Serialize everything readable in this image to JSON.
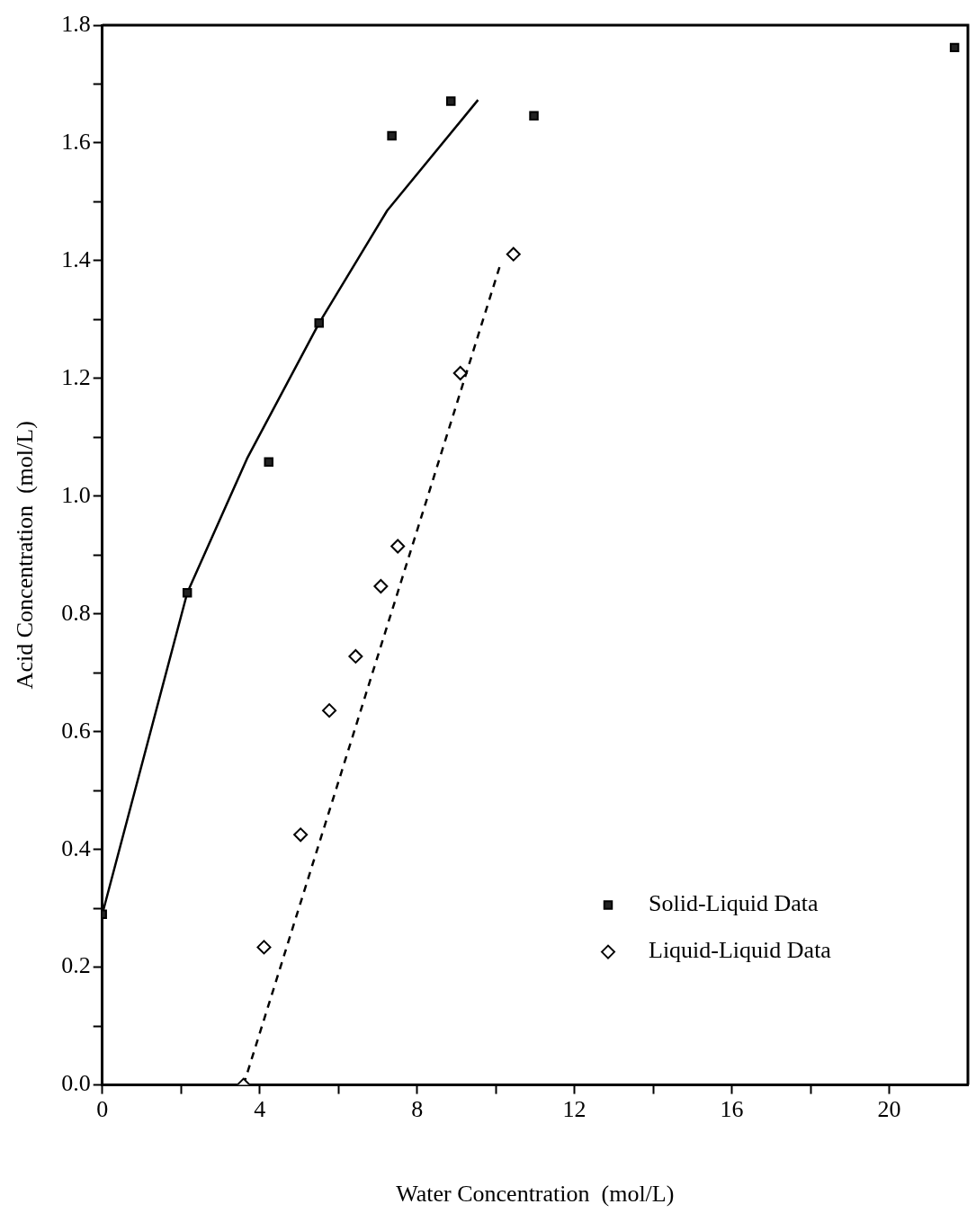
{
  "chart_data": {
    "type": "scatter",
    "xlabel": "Water Concentration  (mol/L)",
    "ylabel": "Acid Concentration  (mol/L)",
    "xlim": [
      0,
      22
    ],
    "ylim": [
      0,
      1.8
    ],
    "xticks": [
      0,
      {
        "value": 2,
        "label": null
      },
      4,
      {
        "value": 6,
        "label": null
      },
      8,
      {
        "value": 10,
        "label": null
      },
      12,
      {
        "value": 14,
        "label": null
      },
      16,
      {
        "value": 18,
        "label": null
      },
      20
    ],
    "yticks": [
      {
        "value": 0,
        "label": "0.0"
      },
      {
        "value": 0.1,
        "label": null
      },
      0.2,
      {
        "value": 0.3,
        "label": null
      },
      0.4,
      {
        "value": 0.5,
        "label": null
      },
      0.6,
      {
        "value": 0.7,
        "label": null
      },
      0.8,
      {
        "value": 0.9,
        "label": null
      },
      {
        "value": 1,
        "label": "1.0"
      },
      {
        "value": 1.1,
        "label": null
      },
      1.2,
      {
        "value": 1.3,
        "label": null
      },
      1.4,
      {
        "value": 1.5,
        "label": null
      },
      1.6,
      {
        "value": 1.7,
        "label": null
      },
      1.8
    ],
    "legend": "bottom right",
    "series": [
      {
        "name": "Solid-Liquid Data",
        "marker": "square",
        "color": "#222222",
        "x": [
          0,
          2.16,
          4.23,
          5.51,
          7.36,
          8.86,
          10.97,
          21.66
        ],
        "values": [
          0.29,
          0.836,
          1.058,
          1.294,
          1.612,
          1.671,
          1.646,
          1.762
        ]
      },
      {
        "name": "Liquid-Liquid Data",
        "marker": "diamond",
        "color": "#000000",
        "x": [
          3.59,
          4.11,
          5.04,
          5.77,
          6.44,
          7.08,
          7.51,
          9.1,
          10.45
        ],
        "values": [
          0,
          0.234,
          0.425,
          0.636,
          0.728,
          0.847,
          0.915,
          1.209,
          1.411
        ]
      },
      {
        "type": "line",
        "marker": "none",
        "line_style": "solid",
        "color": "#000000",
        "x": [
          0,
          2.16,
          3.68,
          5.51,
          7.24,
          9.55
        ],
        "values": [
          0.29,
          0.836,
          1.064,
          1.294,
          1.485,
          1.673
        ]
      },
      {
        "type": "line",
        "marker": "none",
        "line_style": "dashed",
        "color": "#000000",
        "x": [
          3.59,
          10.1
        ],
        "values": [
          0,
          1.39
        ]
      }
    ]
  }
}
